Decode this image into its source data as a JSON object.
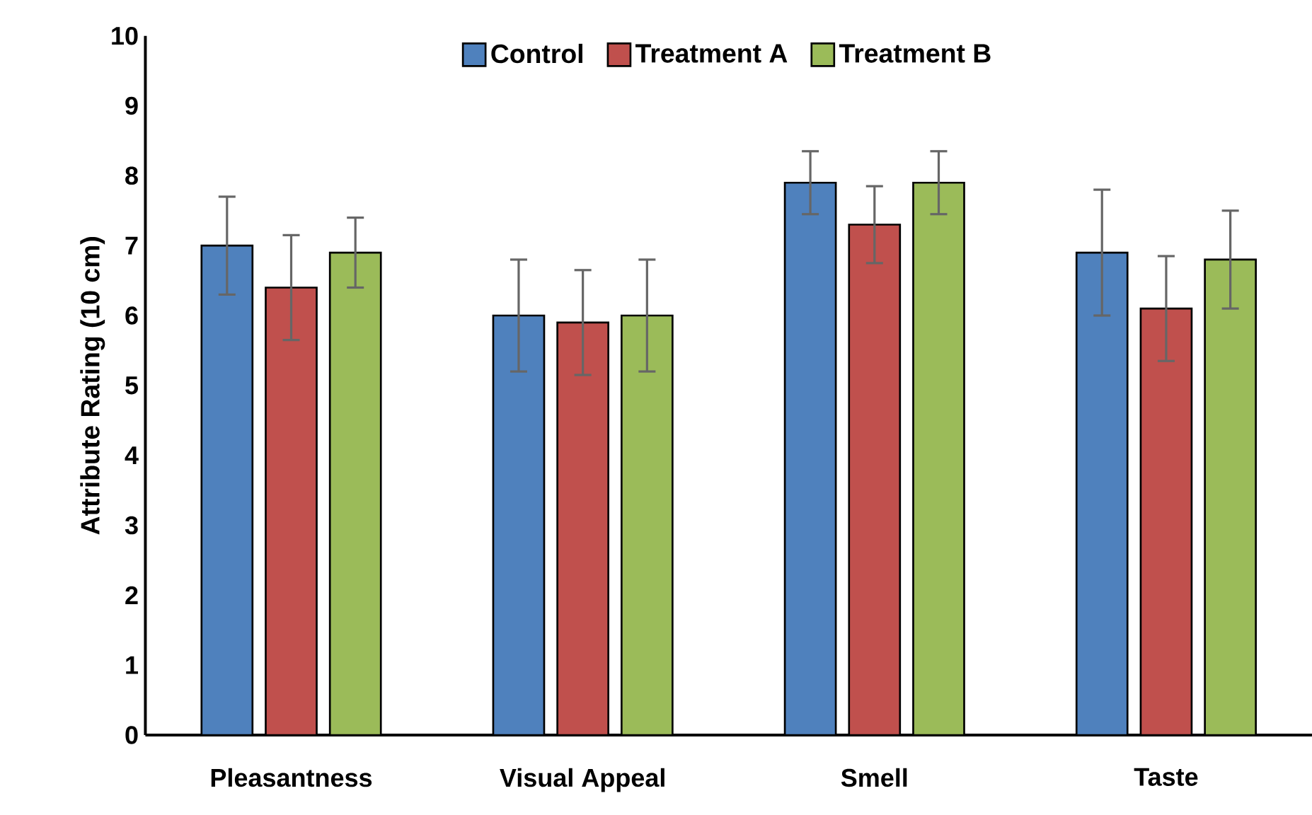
{
  "chart_data": {
    "type": "bar",
    "ylabel": "Attribute Rating (10 cm)",
    "categories": [
      "Pleasantness",
      "Visual Appeal",
      "Smell",
      "Taste"
    ],
    "series": [
      {
        "name": "Control",
        "color": "#4f81bd",
        "values": [
          7.0,
          6.0,
          7.9,
          6.9
        ],
        "errors": [
          0.7,
          0.8,
          0.45,
          0.9
        ]
      },
      {
        "name": "Treatment A",
        "color": "#c0504d",
        "values": [
          6.4,
          5.9,
          7.3,
          6.1
        ],
        "errors": [
          0.75,
          0.75,
          0.55,
          0.75
        ]
      },
      {
        "name": "Treatment B",
        "color": "#9bbb59",
        "values": [
          6.9,
          6.0,
          7.9,
          6.8
        ],
        "errors": [
          0.5,
          0.8,
          0.45,
          0.7
        ]
      }
    ],
    "ylim": [
      0,
      10
    ],
    "yticks": [
      0,
      1,
      2,
      3,
      4,
      5,
      6,
      7,
      8,
      9,
      10
    ],
    "legend": "top"
  }
}
